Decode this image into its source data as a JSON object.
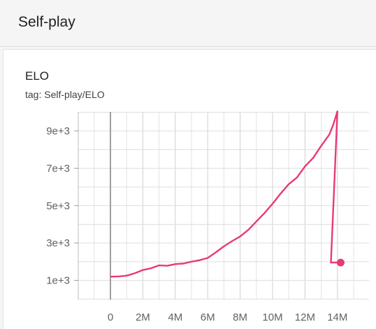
{
  "header": {
    "title": "Self-play"
  },
  "card": {
    "title": "ELO",
    "tag": "tag: Self-play/ELO"
  },
  "chart_data": {
    "type": "line",
    "title": "ELO",
    "xlabel": "",
    "ylabel": "",
    "x_ticks": [
      "0",
      "2M",
      "4M",
      "6M",
      "8M",
      "10M",
      "12M",
      "14M"
    ],
    "y_ticks": [
      "1e+3",
      "3e+3",
      "5e+3",
      "7e+3",
      "9e+3"
    ],
    "xlim": [
      -2000000,
      15400000
    ],
    "ylim": [
      1000,
      10000
    ],
    "grid": true,
    "series": [
      {
        "color": "#e8397a",
        "x": [
          0,
          500000,
          1000000,
          1500000,
          2000000,
          2500000,
          3000000,
          3500000,
          4000000,
          4500000,
          5000000,
          5500000,
          6000000,
          6500000,
          7000000,
          7500000,
          8000000,
          8500000,
          9000000,
          9500000,
          10000000,
          10500000,
          11000000,
          11500000,
          12000000,
          12500000,
          13000000,
          13500000,
          13750000,
          14000000,
          13600000,
          14200000
        ],
        "y": [
          1200,
          1210,
          1250,
          1380,
          1550,
          1650,
          1800,
          1780,
          1870,
          1900,
          2000,
          2080,
          2200,
          2500,
          2820,
          3100,
          3350,
          3700,
          4150,
          4600,
          5100,
          5650,
          6150,
          6500,
          7100,
          7550,
          8200,
          8800,
          9350,
          10050,
          1950,
          1950
        ]
      }
    ]
  }
}
